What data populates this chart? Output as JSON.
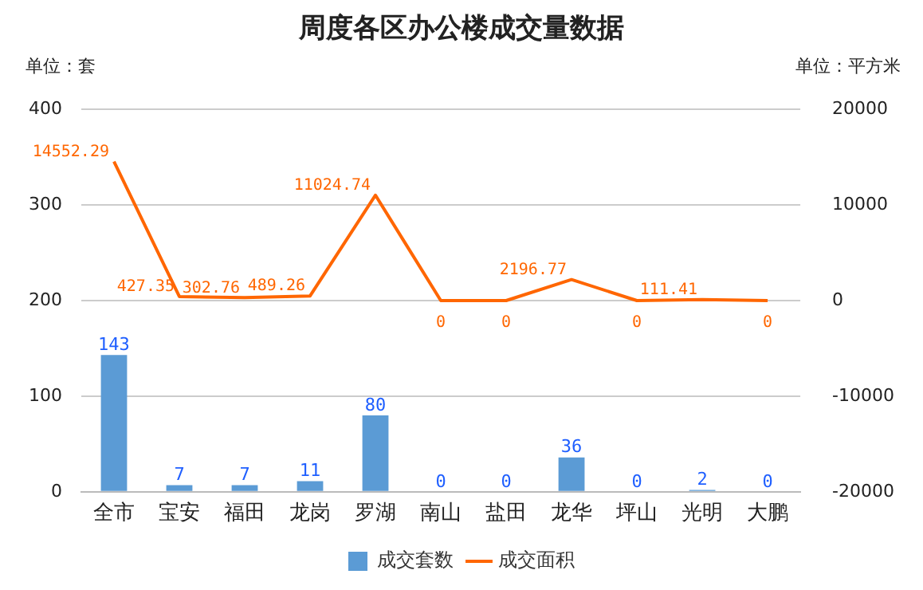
{
  "chart_data": {
    "type": "bar",
    "title": "周度各区办公楼成交量数据",
    "ylabel": "单位：套",
    "y2label": "单位：平方米",
    "categories": [
      "全市",
      "宝安",
      "福田",
      "龙岗",
      "罗湖",
      "南山",
      "盐田",
      "龙华",
      "坪山",
      "光明",
      "大鹏"
    ],
    "series": [
      {
        "name": "成交套数",
        "color": "#5b9bd5",
        "values": [
          143,
          7,
          7,
          11,
          80,
          0,
          0,
          36,
          0,
          2,
          0
        ]
      },
      {
        "name": "成交面积",
        "type": "line",
        "axis": "y2",
        "color": "#ff6600",
        "values": [
          14552.29,
          427.35,
          302.76,
          489.26,
          11024.74,
          0,
          0,
          2196.77,
          0,
          111.41,
          0
        ]
      }
    ],
    "ylim": [
      0,
      400
    ],
    "yticks": [
      0,
      100,
      200,
      300,
      400
    ],
    "y2lim": [
      -20000,
      20000
    ],
    "y2ticks": [
      -20000,
      -10000,
      0,
      10000,
      20000
    ],
    "grid": "y",
    "legend": "bottom",
    "data_labels": true,
    "marker": "none"
  }
}
